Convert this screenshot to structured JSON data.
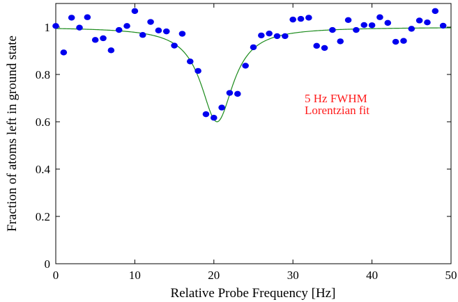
{
  "chart_data": {
    "type": "scatter",
    "xlabel": "Relative Probe Frequency [Hz]",
    "ylabel": "Fraction of atoms left in ground state",
    "xlim": [
      0,
      50
    ],
    "ylim": [
      0,
      1.1
    ],
    "x_ticks": [
      0,
      10,
      20,
      30,
      40,
      50
    ],
    "y_ticks": [
      0,
      0.2,
      0.4,
      0.6,
      0.8,
      1
    ],
    "x_tick_labels": [
      "0",
      "10",
      "20",
      "30",
      "40",
      "50"
    ],
    "y_tick_labels": [
      "0",
      "0.2",
      "0.4",
      "0.6",
      "0.8",
      "1"
    ],
    "grid": false,
    "annotation": [
      "5 Hz FWHM",
      "Lorentzian fit"
    ],
    "colors": {
      "points": "#0000ee",
      "fit": "#1a8a1a",
      "annotation": "#ff1a1a"
    },
    "series": [
      {
        "type": "scatter",
        "x": [
          0,
          1,
          2,
          3,
          4,
          5,
          6,
          7,
          8,
          9,
          10,
          11,
          12,
          13,
          14,
          15,
          16,
          17,
          18,
          19,
          20,
          21,
          22,
          23,
          24,
          25,
          26,
          27,
          28,
          29,
          30,
          31,
          32,
          33,
          34,
          35,
          36,
          37,
          38,
          39,
          40,
          41,
          42,
          43,
          44,
          45,
          46,
          47,
          48,
          49
        ],
        "y": [
          1.005,
          0.893,
          1.04,
          0.998,
          1.042,
          0.946,
          0.953,
          0.902,
          0.988,
          1.005,
          1.068,
          0.967,
          1.022,
          0.986,
          0.982,
          0.922,
          0.972,
          0.855,
          0.815,
          0.632,
          0.617,
          0.66,
          0.722,
          0.718,
          0.837,
          0.915,
          0.965,
          0.973,
          0.962,
          0.962,
          1.032,
          1.035,
          1.04,
          0.921,
          0.912,
          0.988,
          0.94,
          1.03,
          0.988,
          1.009,
          1.008,
          1.042,
          1.018,
          0.938,
          0.942,
          0.993,
          1.028,
          1.02,
          1.068,
          1.006
        ]
      },
      {
        "type": "line",
        "fit": "lorentzian",
        "center": 20.4,
        "fwhm": 5,
        "baseline": 1.0,
        "depth": 0.4
      }
    ]
  }
}
